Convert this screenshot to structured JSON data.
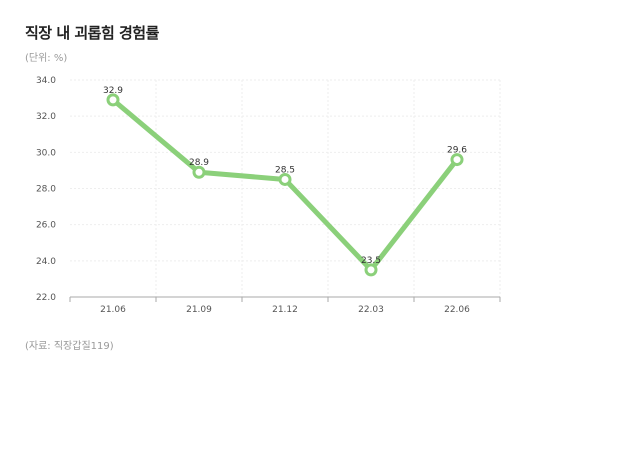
{
  "title": "직장 내 괴롭힘 경험률",
  "unit_note": "(단위: %)",
  "source": "(자료: 직장갑질119)",
  "colors": {
    "line": "#8bd07a",
    "grid": "#eeeeee",
    "axis": "#aaaaaa"
  },
  "chart_data": {
    "type": "line",
    "title": "직장 내 괴롭힘 경험률",
    "xlabel": "",
    "ylabel": "",
    "categories": [
      "21.06",
      "21.09",
      "21.12",
      "22.03",
      "22.06"
    ],
    "series": [
      {
        "values": [
          32.9,
          28.9,
          28.5,
          23.5,
          29.6
        ]
      }
    ],
    "data_labels": [
      "32.9",
      "28.9",
      "28.5",
      "23.5",
      "29.6"
    ],
    "ylim": [
      22.0,
      34.0
    ],
    "yticks": [
      "22.0",
      "24.0",
      "26.0",
      "28.0",
      "30.0",
      "32.0",
      "34.0"
    ],
    "grid": true,
    "legend": "none"
  }
}
